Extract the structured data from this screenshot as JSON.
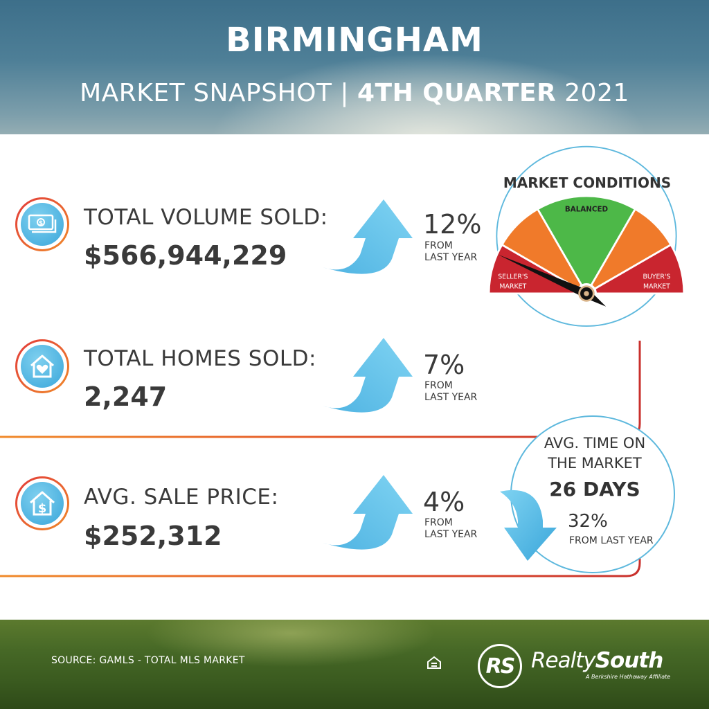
{
  "header": {
    "title": "BIRMINGHAM",
    "subtitle_prefix": "MARKET SNAPSHOT | ",
    "subtitle_bold": "4TH QUARTER",
    "subtitle_suffix": " 2021"
  },
  "stats": [
    {
      "label": "TOTAL VOLUME SOLD:",
      "value": "$566,944,229",
      "change": "12%",
      "from_1": "FROM",
      "from_2": "LAST YEAR",
      "direction": "up",
      "icon": "money-stack-icon"
    },
    {
      "label": "TOTAL HOMES SOLD:",
      "value": "2,247",
      "change": "7%",
      "from_1": "FROM",
      "from_2": "LAST YEAR",
      "direction": "up",
      "icon": "house-heart-icon"
    },
    {
      "label": "AVG. SALE PRICE:",
      "value": "$252,312",
      "change": "4%",
      "from_1": "FROM",
      "from_2": "LAST YEAR",
      "direction": "up",
      "icon": "house-dollar-icon"
    }
  ],
  "market_conditions": {
    "title": "MARKET CONDITIONS",
    "segment_balanced": "BALANCED",
    "seller_1": "SELLER'S",
    "seller_2": "MARKET",
    "buyer_1": "BUYER'S",
    "buyer_2": "MARKET",
    "indicator": "seller's market",
    "colors": {
      "red": "#c9252f",
      "orange": "#f07a2a",
      "green": "#4db848"
    }
  },
  "time_on_market": {
    "line_1": "AVG. TIME ON",
    "line_2": "THE MARKET",
    "value": "26 DAYS",
    "change": "32%",
    "from": "FROM LAST YEAR",
    "direction": "down"
  },
  "footer": {
    "source": "SOURCE: GAMLS - TOTAL MLS MARKET",
    "logo_mark": "RS",
    "logo_name_regular": "Realty",
    "logo_name_bold": "South",
    "logo_tagline": "A Berkshire Hathaway Affiliate"
  },
  "colors": {
    "accent_blue": "#3aa6da",
    "line_gradient_start": "#f08a2a",
    "line_gradient_end": "#c9302c",
    "text": "#3a3a3a"
  }
}
